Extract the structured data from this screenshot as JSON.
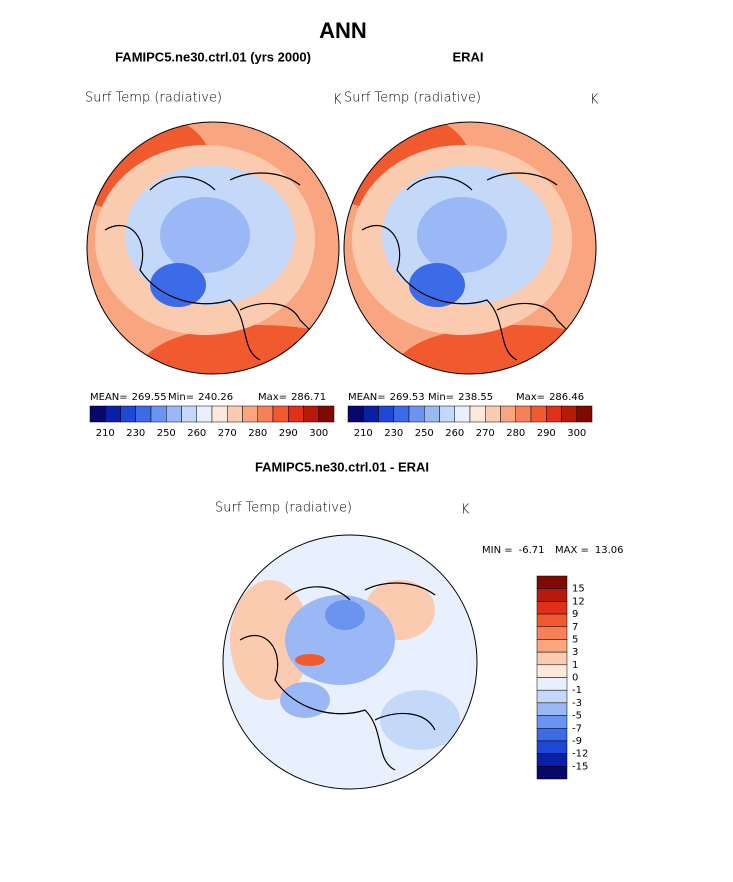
{
  "title": "ANN",
  "panels": [
    {
      "title": "FAMIPC5.ne30.ctrl.01 (yrs 2000)",
      "variable": "Surf Temp (radiative)",
      "units": "K",
      "stats": [
        {
          "label": "MEAN=",
          "value": 269.55
        },
        {
          "label": "Min=",
          "value": 240.26
        },
        {
          "label": "Max=",
          "value": 286.71
        }
      ],
      "colorbar": {
        "labels": [
          210,
          230,
          250,
          260,
          270,
          280,
          290,
          300
        ],
        "colors": [
          "#08086b",
          "#0a1fa8",
          "#1f48d6",
          "#3c6be8",
          "#6a94f0",
          "#9ab8f5",
          "#c4d8fa",
          "#e8f0fd",
          "#fde9dc",
          "#fbcbb0",
          "#f9a680",
          "#f6805a",
          "#f15a2f",
          "#e0301a",
          "#b51a0b",
          "#7f0a03"
        ]
      }
    },
    {
      "title": "ERAI",
      "variable": "Surf Temp (radiative)",
      "units": "K",
      "stats": [
        {
          "label": "MEAN=",
          "value": 269.53
        },
        {
          "label": "Min=",
          "value": 238.55
        },
        {
          "label": "Max=",
          "value": 286.46
        }
      ],
      "colorbar": {
        "labels": [
          210,
          230,
          250,
          260,
          270,
          280,
          290,
          300
        ],
        "colors": [
          "#08086b",
          "#0a1fa8",
          "#1f48d6",
          "#3c6be8",
          "#6a94f0",
          "#9ab8f5",
          "#c4d8fa",
          "#e8f0fd",
          "#fde9dc",
          "#fbcbb0",
          "#f9a680",
          "#f6805a",
          "#f15a2f",
          "#e0301a",
          "#b51a0b",
          "#7f0a03"
        ]
      }
    },
    {
      "title": "FAMIPC5.ne30.ctrl.01 - ERAI",
      "variable": "Surf Temp (radiative)",
      "units": "K",
      "stats": [
        {
          "label": "MIN =",
          "value": -6.71
        },
        {
          "label": "MAX =",
          "value": 13.06
        }
      ],
      "colorbar": {
        "labels": [
          15,
          12,
          9,
          7,
          5,
          3,
          1,
          0,
          -1,
          -3,
          -5,
          -7,
          -9,
          -12,
          -15
        ],
        "colors": [
          "#7f0a03",
          "#b51a0b",
          "#e0301a",
          "#f15a2f",
          "#f6805a",
          "#f9a680",
          "#fbcbb0",
          "#fde9dc",
          "#e8f0fd",
          "#c4d8fa",
          "#9ab8f5",
          "#6a94f0",
          "#3c6be8",
          "#1f48d6",
          "#0a1fa8",
          "#08086b"
        ]
      }
    }
  ]
}
